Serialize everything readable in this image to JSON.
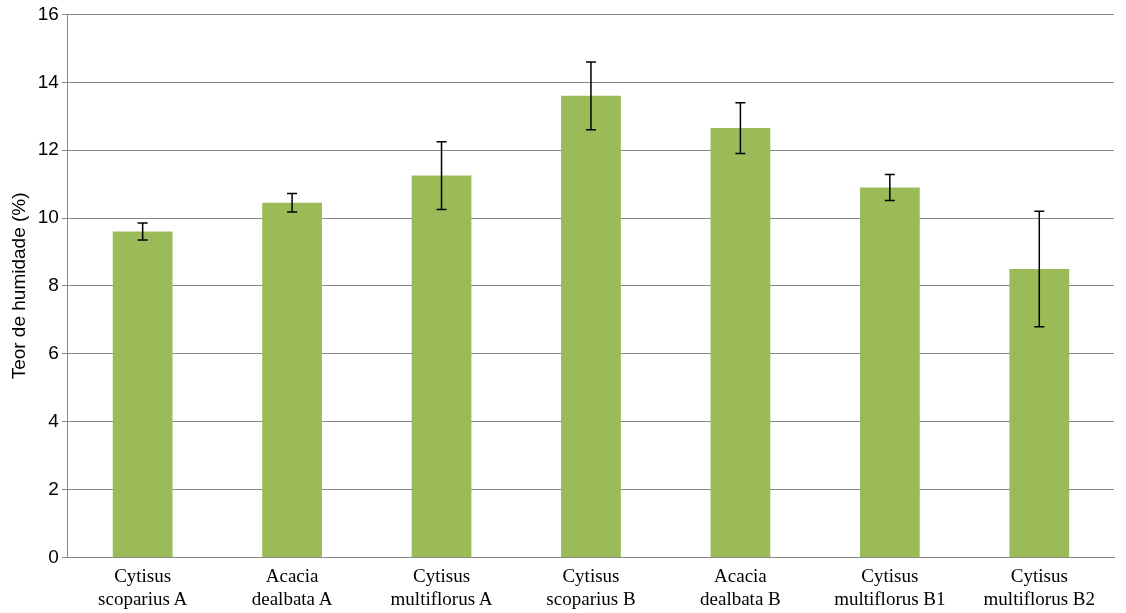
{
  "chart_data": {
    "type": "bar",
    "ylabel": "Teor de humidade (%)",
    "categories": [
      "Cytisus scoparius A",
      "Acacia dealbata A",
      "Cytisus multiflorus A",
      "Cytisus scoparius B",
      "Acacia dealbata B",
      "Cytisus multiflorus B1",
      "Cytisus multiflorus B2"
    ],
    "series": [
      {
        "color": "#9bbb59",
        "values": [
          9.6,
          10.45,
          11.25,
          13.6,
          12.65,
          10.9,
          8.5
        ],
        "errors": [
          0.25,
          0.27,
          1.0,
          1.0,
          0.75,
          0.38,
          1.7
        ]
      }
    ],
    "ylim": [
      0,
      16
    ],
    "yticks": [
      0,
      2,
      4,
      6,
      8,
      10,
      12,
      14,
      16
    ],
    "grid": "y",
    "legend": false
  }
}
